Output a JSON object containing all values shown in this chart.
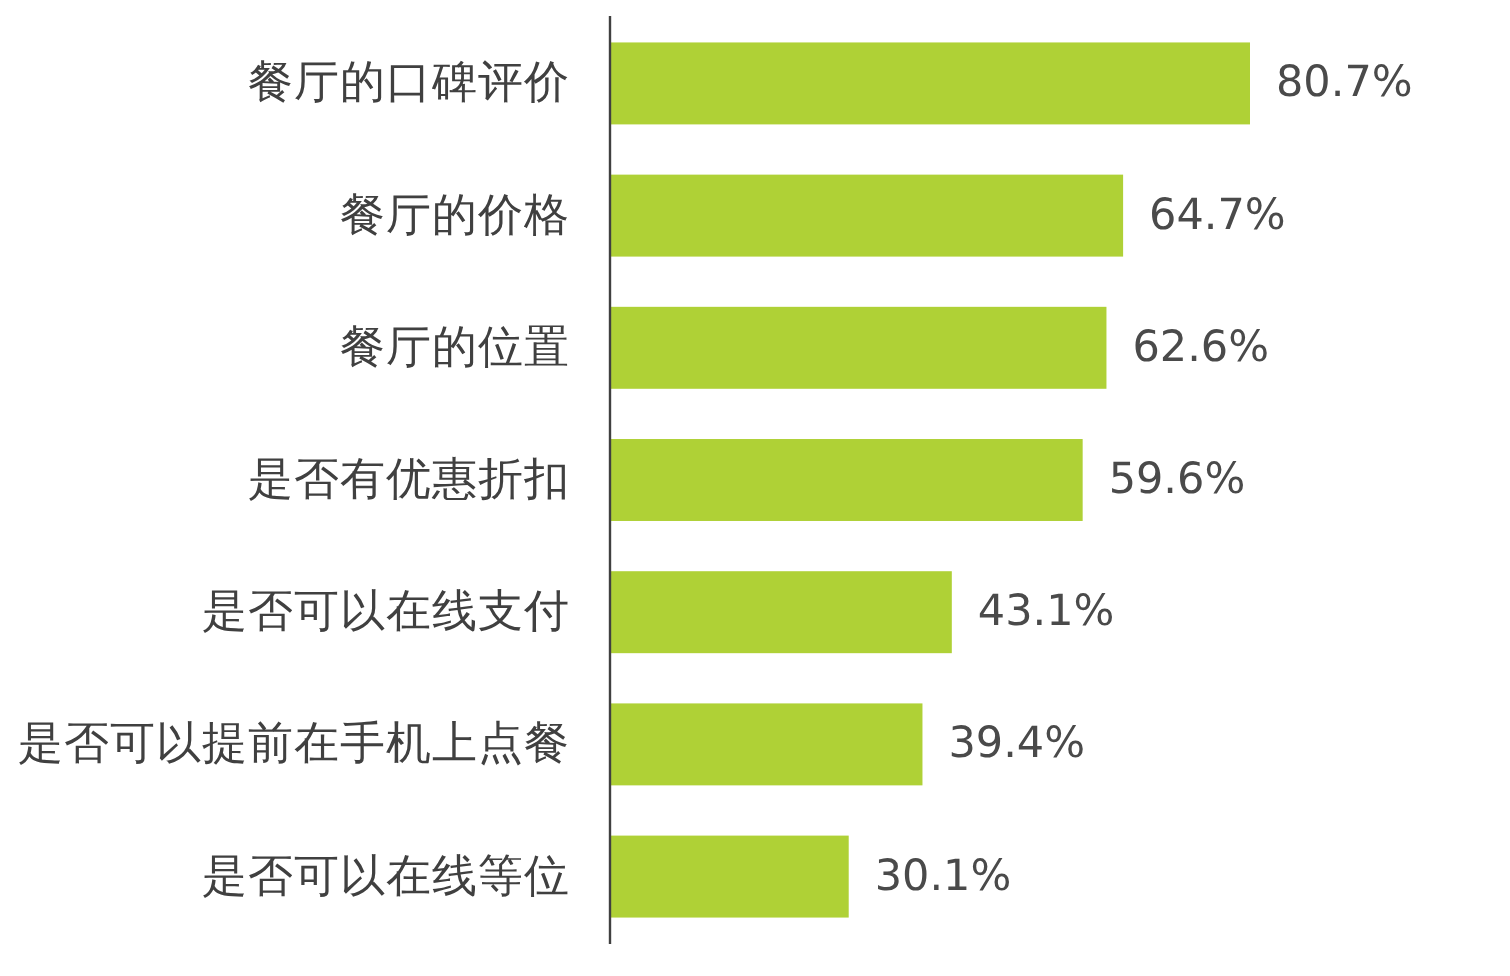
{
  "chart_data": {
    "type": "bar",
    "orientation": "horizontal",
    "categories": [
      "餐厅的口碑评价",
      "餐厅的价格",
      "餐厅的位置",
      "是否有优惠折扣",
      "是否可以在线支付",
      "是否可以提前在手机上点餐",
      "是否可以在线等位"
    ],
    "values": [
      80.7,
      64.7,
      62.6,
      59.6,
      43.1,
      39.4,
      30.1
    ],
    "value_labels": [
      "80.7%",
      "64.7%",
      "62.6%",
      "59.6%",
      "43.1%",
      "39.4%",
      "30.1%"
    ],
    "color": "#afd136"
  }
}
